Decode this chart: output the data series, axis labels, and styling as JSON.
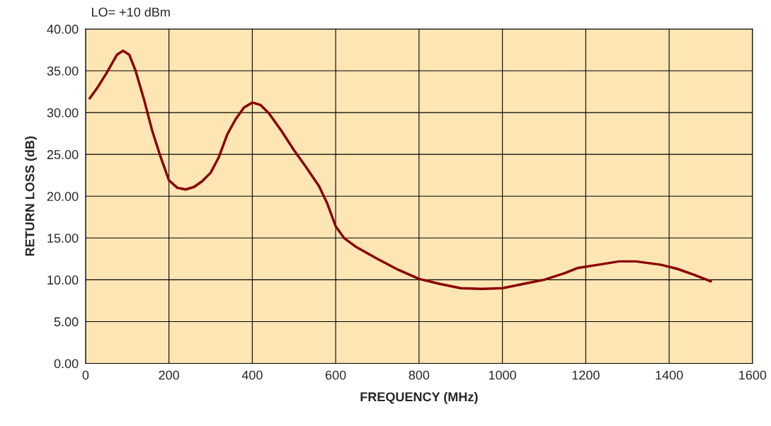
{
  "chart_data": {
    "type": "line",
    "xlabel": "FREQUENCY (MHz)",
    "ylabel": "RETURN LOSS (dB)",
    "annotations": [
      "LO= +10 dBm"
    ],
    "x": [
      10,
      30,
      50,
      75,
      90,
      105,
      120,
      140,
      160,
      180,
      200,
      220,
      240,
      260,
      280,
      300,
      320,
      340,
      360,
      380,
      400,
      420,
      440,
      470,
      500,
      530,
      560,
      580,
      600,
      620,
      650,
      700,
      750,
      800,
      850,
      900,
      950,
      1000,
      1050,
      1100,
      1150,
      1180,
      1230,
      1280,
      1320,
      1380,
      1420,
      1460,
      1500
    ],
    "series": [
      {
        "color": "#8b0000",
        "values": [
          31.7,
          33.1,
          34.7,
          36.9,
          37.4,
          36.9,
          35.0,
          31.6,
          27.8,
          24.7,
          21.9,
          21.0,
          20.8,
          21.1,
          21.8,
          22.8,
          24.7,
          27.4,
          29.2,
          30.6,
          31.2,
          30.9,
          29.9,
          27.8,
          25.5,
          23.4,
          21.2,
          19.1,
          16.4,
          15.0,
          13.9,
          12.5,
          11.2,
          10.1,
          9.5,
          9.0,
          8.9,
          9.0,
          9.5,
          10.0,
          10.8,
          11.4,
          11.8,
          12.2,
          12.2,
          11.8,
          11.3,
          10.6,
          9.8
        ]
      }
    ],
    "xlim": [
      0,
      1600
    ],
    "xticks": [
      0,
      200,
      400,
      600,
      800,
      1000,
      1200,
      1400,
      1600
    ],
    "ylim": [
      0,
      40
    ],
    "yticks": [
      {
        "value": 0,
        "label": "0.00"
      },
      {
        "value": 5,
        "label": "5.00"
      },
      {
        "value": 10,
        "label": "10.00"
      },
      {
        "value": 15,
        "label": "15.00"
      },
      {
        "value": 20,
        "label": "20.00"
      },
      {
        "value": 25,
        "label": "25.00"
      },
      {
        "value": 30,
        "label": "30.00"
      },
      {
        "value": 35,
        "label": "35.00"
      },
      {
        "value": 40,
        "label": "40.00"
      }
    ],
    "grid": true,
    "marker": "none",
    "line_style": "solid"
  }
}
